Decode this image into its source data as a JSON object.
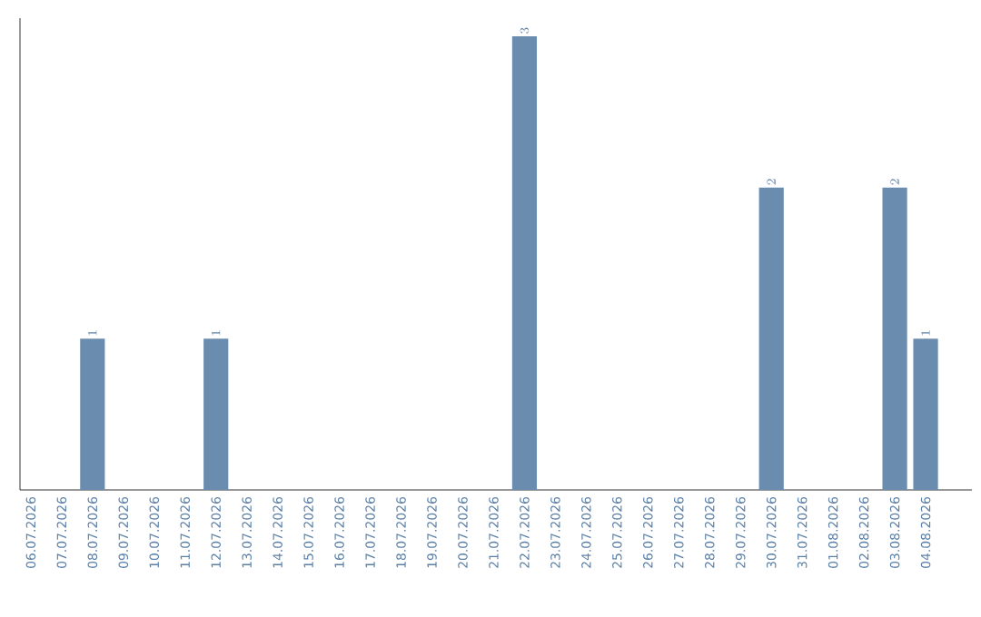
{
  "chart_data": {
    "type": "bar",
    "categories": [
      "06.07.2026",
      "07.07.2026",
      "08.07.2026",
      "09.07.2026",
      "10.07.2026",
      "11.07.2026",
      "12.07.2026",
      "13.07.2026",
      "14.07.2026",
      "15.07.2026",
      "16.07.2026",
      "17.07.2026",
      "18.07.2026",
      "19.07.2026",
      "20.07.2026",
      "21.07.2026",
      "22.07.2026",
      "23.07.2026",
      "24.07.2026",
      "25.07.2026",
      "26.07.2026",
      "27.07.2026",
      "28.07.2026",
      "29.07.2026",
      "30.07.2026",
      "31.07.2026",
      "01.08.2026",
      "02.08.2026",
      "03.08.2026",
      "04.08.2026"
    ],
    "values": [
      null,
      null,
      1,
      null,
      null,
      null,
      1,
      null,
      null,
      null,
      null,
      null,
      null,
      null,
      null,
      null,
      3,
      null,
      null,
      null,
      null,
      null,
      null,
      null,
      2,
      null,
      null,
      null,
      2,
      1
    ],
    "color": "#6a8caf",
    "data_labels": true,
    "tick_labels": "x"
  }
}
